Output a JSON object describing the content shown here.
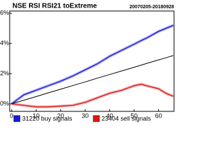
{
  "chart_data": {
    "type": "line",
    "title": "NSE RSI RSI21 toExtreme",
    "subtitle": "20070205-20180928",
    "x": [
      0,
      5,
      10,
      15,
      20,
      25,
      30,
      35,
      40,
      45,
      50,
      53,
      55,
      60,
      63,
      66
    ],
    "series": [
      {
        "name": "31220 buy signals",
        "color": "#1a1adc",
        "values": [
          0,
          0.6,
          0.9,
          1.2,
          1.5,
          1.85,
          2.25,
          2.65,
          3.15,
          3.55,
          3.95,
          4.2,
          4.35,
          4.8,
          5.0,
          5.2
        ]
      },
      {
        "name": "23404 sell signals",
        "color": "#dc1a1a",
        "values": [
          0,
          -0.1,
          -0.2,
          -0.2,
          -0.15,
          -0.1,
          0.1,
          0.4,
          0.7,
          0.9,
          1.2,
          1.3,
          1.2,
          1.0,
          0.7,
          0.5
        ]
      },
      {
        "color": "#000000",
        "values": [
          0,
          0.24,
          0.48,
          0.73,
          0.97,
          1.21,
          1.45,
          1.7,
          1.94,
          2.18,
          2.42,
          2.57,
          2.67,
          2.91,
          3.05,
          3.2
        ]
      }
    ],
    "xlim": [
      -0.8,
      66.3
    ],
    "ylim": [
      -0.5,
      6.15
    ],
    "xticks": [
      0,
      10,
      20,
      30,
      40,
      50,
      60
    ],
    "yticks": [
      {
        "value": 0,
        "label": "0%"
      },
      {
        "value": 2,
        "label": "2%"
      },
      {
        "value": 4,
        "label": "4%"
      },
      {
        "value": 6,
        "label": "6%"
      }
    ]
  }
}
